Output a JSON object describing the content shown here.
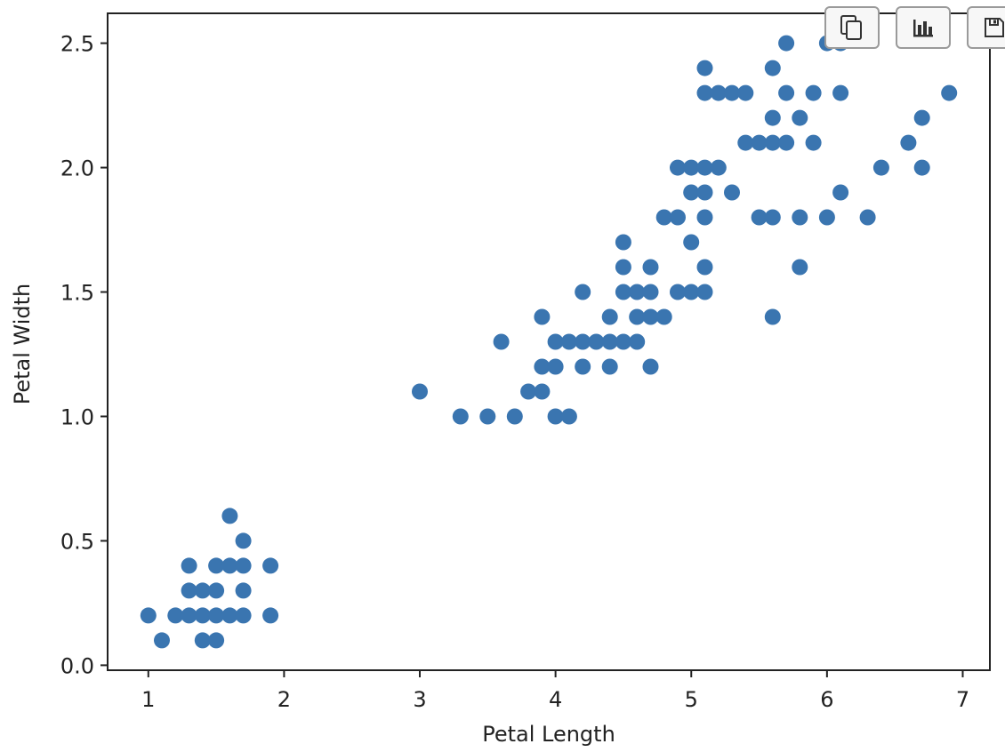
{
  "chart_data": {
    "type": "scatter",
    "title": "",
    "xlabel": "Petal Length",
    "ylabel": "Petal Width",
    "xlim": [
      0.7,
      7.2
    ],
    "ylim": [
      -0.02,
      2.62
    ],
    "xticks": [
      1,
      2,
      3,
      4,
      5,
      6,
      7
    ],
    "xtick_labels": [
      "1",
      "2",
      "3",
      "4",
      "5",
      "6",
      "7"
    ],
    "yticks": [
      0.0,
      0.5,
      1.0,
      1.5,
      2.0,
      2.5
    ],
    "ytick_labels": [
      "0.0",
      "0.5",
      "1.0",
      "1.5",
      "2.0",
      "2.5"
    ],
    "grid": false,
    "marker_color": "#3a75b0",
    "series": [
      {
        "points": [
          [
            1.0,
            0.2
          ],
          [
            1.1,
            0.1
          ],
          [
            1.2,
            0.2
          ],
          [
            1.3,
            0.2
          ],
          [
            1.3,
            0.3
          ],
          [
            1.3,
            0.4
          ],
          [
            1.4,
            0.1
          ],
          [
            1.4,
            0.2
          ],
          [
            1.4,
            0.3
          ],
          [
            1.5,
            0.1
          ],
          [
            1.5,
            0.2
          ],
          [
            1.5,
            0.3
          ],
          [
            1.5,
            0.4
          ],
          [
            1.6,
            0.2
          ],
          [
            1.6,
            0.4
          ],
          [
            1.6,
            0.6
          ],
          [
            1.7,
            0.2
          ],
          [
            1.7,
            0.3
          ],
          [
            1.7,
            0.4
          ],
          [
            1.7,
            0.5
          ],
          [
            1.9,
            0.2
          ],
          [
            1.9,
            0.4
          ],
          [
            3.0,
            1.1
          ],
          [
            3.3,
            1.0
          ],
          [
            3.5,
            1.0
          ],
          [
            3.6,
            1.3
          ],
          [
            3.7,
            1.0
          ],
          [
            3.8,
            1.1
          ],
          [
            3.9,
            1.1
          ],
          [
            3.9,
            1.2
          ],
          [
            3.9,
            1.4
          ],
          [
            4.0,
            1.0
          ],
          [
            4.0,
            1.2
          ],
          [
            4.0,
            1.3
          ],
          [
            4.1,
            1.0
          ],
          [
            4.1,
            1.3
          ],
          [
            4.2,
            1.2
          ],
          [
            4.2,
            1.3
          ],
          [
            4.2,
            1.5
          ],
          [
            4.3,
            1.3
          ],
          [
            4.4,
            1.2
          ],
          [
            4.4,
            1.3
          ],
          [
            4.4,
            1.4
          ],
          [
            4.5,
            1.3
          ],
          [
            4.5,
            1.5
          ],
          [
            4.5,
            1.6
          ],
          [
            4.5,
            1.7
          ],
          [
            4.6,
            1.3
          ],
          [
            4.6,
            1.4
          ],
          [
            4.6,
            1.5
          ],
          [
            4.7,
            1.2
          ],
          [
            4.7,
            1.4
          ],
          [
            4.7,
            1.5
          ],
          [
            4.7,
            1.6
          ],
          [
            4.8,
            1.4
          ],
          [
            4.8,
            1.8
          ],
          [
            4.9,
            1.5
          ],
          [
            4.9,
            1.8
          ],
          [
            4.9,
            2.0
          ],
          [
            5.0,
            1.5
          ],
          [
            5.0,
            1.7
          ],
          [
            5.0,
            1.9
          ],
          [
            5.0,
            2.0
          ],
          [
            5.1,
            1.5
          ],
          [
            5.1,
            1.6
          ],
          [
            5.1,
            1.8
          ],
          [
            5.1,
            1.9
          ],
          [
            5.1,
            2.0
          ],
          [
            5.1,
            2.3
          ],
          [
            5.1,
            2.4
          ],
          [
            5.2,
            2.0
          ],
          [
            5.2,
            2.3
          ],
          [
            5.3,
            1.9
          ],
          [
            5.3,
            2.3
          ],
          [
            5.4,
            2.1
          ],
          [
            5.4,
            2.3
          ],
          [
            5.5,
            1.8
          ],
          [
            5.5,
            2.1
          ],
          [
            5.6,
            1.4
          ],
          [
            5.6,
            1.8
          ],
          [
            5.6,
            2.1
          ],
          [
            5.6,
            2.2
          ],
          [
            5.6,
            2.4
          ],
          [
            5.7,
            2.1
          ],
          [
            5.7,
            2.3
          ],
          [
            5.7,
            2.5
          ],
          [
            5.8,
            1.6
          ],
          [
            5.8,
            1.8
          ],
          [
            5.8,
            2.2
          ],
          [
            5.9,
            2.1
          ],
          [
            5.9,
            2.3
          ],
          [
            6.0,
            1.8
          ],
          [
            6.0,
            2.5
          ],
          [
            6.1,
            1.9
          ],
          [
            6.1,
            2.3
          ],
          [
            6.1,
            2.5
          ],
          [
            6.3,
            1.8
          ],
          [
            6.4,
            2.0
          ],
          [
            6.6,
            2.1
          ],
          [
            6.7,
            2.0
          ],
          [
            6.7,
            2.2
          ],
          [
            6.9,
            2.3
          ]
        ]
      }
    ]
  },
  "toolbar": {
    "buttons": [
      {
        "icon": "copy-icon"
      },
      {
        "icon": "bar-chart-icon"
      },
      {
        "icon": "save-icon"
      }
    ]
  }
}
